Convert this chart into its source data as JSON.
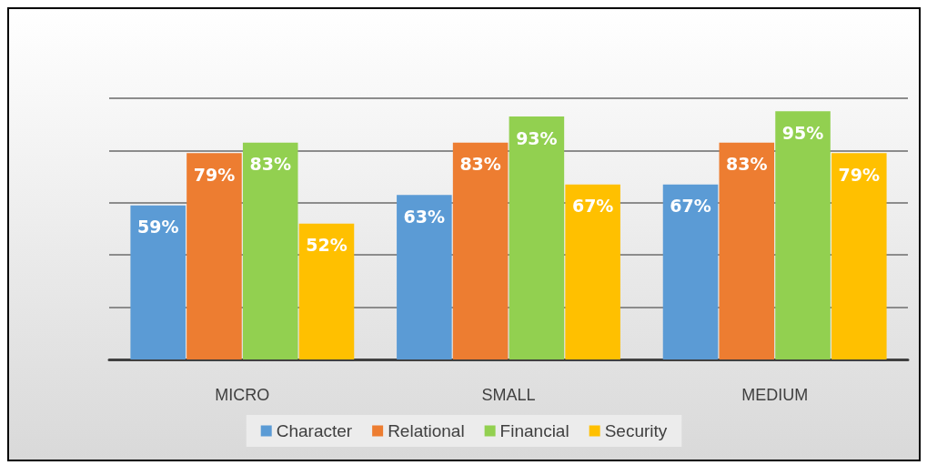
{
  "chart_data": {
    "type": "bar",
    "categories": [
      "MICRO",
      "SMALL",
      "MEDIUM"
    ],
    "series": [
      {
        "name": "Character",
        "color": "#5b9bd5",
        "values": [
          59,
          63,
          67
        ],
        "value_labels": [
          "59%",
          "63%",
          "67%"
        ]
      },
      {
        "name": "Relational",
        "color": "#ed7d31",
        "values": [
          79,
          83,
          83
        ],
        "value_labels": [
          "79%",
          "83%",
          "83%"
        ]
      },
      {
        "name": "Financial",
        "color": "#92d050",
        "values": [
          83,
          93,
          95
        ],
        "value_labels": [
          "83%",
          "93%",
          "95%"
        ]
      },
      {
        "name": "Security",
        "color": "#ffc000",
        "values": [
          52,
          67,
          79
        ],
        "value_labels": [
          "52%",
          "67%",
          "79%"
        ]
      }
    ],
    "ylim": [
      0,
      100
    ],
    "yticks": [
      {
        "value": 0,
        "label": null
      },
      {
        "value": 20,
        "label": null
      },
      {
        "value": 40,
        "label": null
      },
      {
        "value": 60,
        "label": null
      },
      {
        "value": 80,
        "label": null
      },
      {
        "value": 100,
        "label": null
      }
    ],
    "grid": "y",
    "legend": "bottom",
    "tick_labels": "x"
  }
}
